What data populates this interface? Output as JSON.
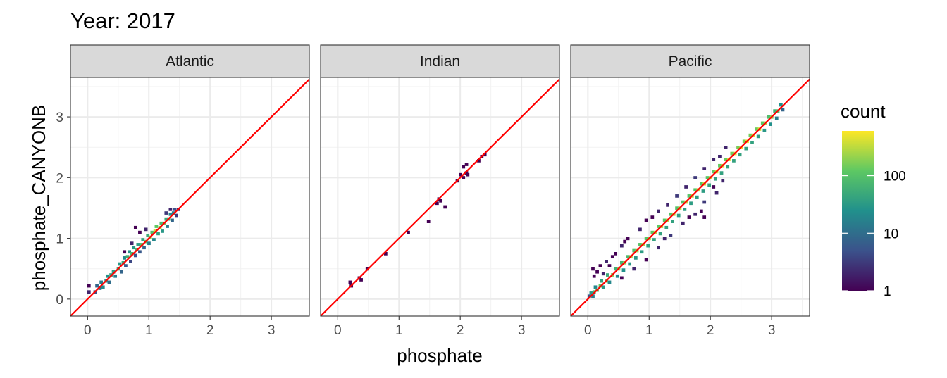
{
  "chart_data": {
    "type": "heatmap",
    "title": "Year: 2017",
    "xlabel": "phosphate",
    "ylabel": "phosphate_CANYONB",
    "xlim": [
      -0.28,
      3.62
    ],
    "ylim": [
      -0.28,
      3.65
    ],
    "x_ticks": [
      "0",
      "1",
      "2",
      "3"
    ],
    "y_ticks": [
      "0",
      "1",
      "2",
      "3"
    ],
    "reference_line": {
      "slope": 1,
      "intercept": 0,
      "color": "#ff0000"
    },
    "grid": true,
    "legend": {
      "title": "count",
      "placement": "right",
      "scale": "log",
      "range": [
        1,
        600
      ],
      "breaks": [
        "1",
        "10",
        "100"
      ],
      "colors": [
        "#440154",
        "#3b528b",
        "#21908c",
        "#5dc863",
        "#fde725"
      ]
    },
    "panels": [
      {
        "name": "Atlantic",
        "cells": [
          [
            0.02,
            0.22,
            1
          ],
          [
            0.02,
            0.12,
            2
          ],
          [
            0.12,
            0.12,
            5
          ],
          [
            0.15,
            0.22,
            8
          ],
          [
            0.2,
            0.18,
            12
          ],
          [
            0.22,
            0.28,
            15
          ],
          [
            0.25,
            0.2,
            20
          ],
          [
            0.3,
            0.3,
            30
          ],
          [
            0.32,
            0.38,
            25
          ],
          [
            0.35,
            0.28,
            10
          ],
          [
            0.38,
            0.4,
            40
          ],
          [
            0.42,
            0.45,
            35
          ],
          [
            0.45,
            0.38,
            15
          ],
          [
            0.5,
            0.5,
            50
          ],
          [
            0.52,
            0.58,
            30
          ],
          [
            0.55,
            0.45,
            8
          ],
          [
            0.58,
            0.6,
            45
          ],
          [
            0.6,
            0.68,
            20
          ],
          [
            0.62,
            0.55,
            6
          ],
          [
            0.65,
            0.7,
            60
          ],
          [
            0.68,
            0.78,
            25
          ],
          [
            0.7,
            0.62,
            4
          ],
          [
            0.72,
            0.75,
            70
          ],
          [
            0.75,
            0.85,
            30
          ],
          [
            0.78,
            0.72,
            5
          ],
          [
            0.8,
            0.82,
            80
          ],
          [
            0.82,
            0.9,
            35
          ],
          [
            0.85,
            0.78,
            6
          ],
          [
            0.88,
            0.9,
            100
          ],
          [
            0.9,
            0.98,
            40
          ],
          [
            0.92,
            0.85,
            8
          ],
          [
            0.95,
            0.95,
            120
          ],
          [
            0.98,
            1.05,
            50
          ],
          [
            1.0,
            0.92,
            15
          ],
          [
            1.02,
            1.02,
            200
          ],
          [
            1.05,
            1.1,
            90
          ],
          [
            1.08,
            0.98,
            20
          ],
          [
            1.1,
            1.12,
            350
          ],
          [
            1.12,
            1.2,
            120
          ],
          [
            1.15,
            1.08,
            40
          ],
          [
            1.18,
            1.18,
            250
          ],
          [
            1.2,
            1.25,
            80
          ],
          [
            1.22,
            1.12,
            30
          ],
          [
            1.25,
            1.25,
            150
          ],
          [
            1.28,
            1.32,
            50
          ],
          [
            1.3,
            1.2,
            15
          ],
          [
            1.32,
            1.32,
            60
          ],
          [
            1.35,
            1.4,
            20
          ],
          [
            1.38,
            1.3,
            8
          ],
          [
            1.4,
            1.42,
            15
          ],
          [
            1.42,
            1.48,
            5
          ],
          [
            1.45,
            1.38,
            3
          ],
          [
            1.48,
            1.48,
            2
          ],
          [
            1.28,
            1.42,
            3
          ],
          [
            1.35,
            1.48,
            2
          ],
          [
            0.78,
            1.18,
            1
          ],
          [
            0.85,
            1.1,
            1
          ],
          [
            0.72,
            0.92,
            2
          ],
          [
            0.6,
            0.78,
            1
          ],
          [
            0.95,
            1.15,
            2
          ]
        ]
      },
      {
        "name": "Indian",
        "cells": [
          [
            0.2,
            0.28,
            1
          ],
          [
            0.22,
            0.22,
            1
          ],
          [
            0.35,
            0.35,
            1
          ],
          [
            0.38,
            0.32,
            1
          ],
          [
            0.48,
            0.5,
            1
          ],
          [
            0.78,
            0.75,
            1
          ],
          [
            1.15,
            1.1,
            1
          ],
          [
            1.48,
            1.28,
            1
          ],
          [
            1.62,
            1.58,
            1
          ],
          [
            1.65,
            1.65,
            1
          ],
          [
            1.75,
            1.52,
            1
          ],
          [
            1.68,
            1.62,
            1
          ],
          [
            1.95,
            1.95,
            1
          ],
          [
            2.0,
            2.05,
            1
          ],
          [
            2.05,
            2.0,
            1
          ],
          [
            2.1,
            2.08,
            1
          ],
          [
            2.05,
            2.18,
            1
          ],
          [
            2.1,
            2.22,
            1
          ],
          [
            2.12,
            2.05,
            1
          ],
          [
            2.35,
            2.35,
            1
          ],
          [
            2.4,
            2.38,
            1
          ],
          [
            2.3,
            2.28,
            1
          ]
        ]
      },
      {
        "name": "Pacific",
        "cells": [
          [
            0.02,
            0.05,
            5
          ],
          [
            0.05,
            0.1,
            30
          ],
          [
            0.08,
            0.05,
            15
          ],
          [
            0.1,
            0.12,
            80
          ],
          [
            0.12,
            0.2,
            20
          ],
          [
            0.15,
            0.15,
            100
          ],
          [
            0.2,
            0.22,
            120
          ],
          [
            0.22,
            0.3,
            40
          ],
          [
            0.25,
            0.2,
            30
          ],
          [
            0.3,
            0.3,
            150
          ],
          [
            0.32,
            0.4,
            50
          ],
          [
            0.35,
            0.28,
            20
          ],
          [
            0.4,
            0.4,
            180
          ],
          [
            0.45,
            0.5,
            60
          ],
          [
            0.48,
            0.38,
            20
          ],
          [
            0.5,
            0.5,
            200
          ],
          [
            0.55,
            0.6,
            70
          ],
          [
            0.58,
            0.48,
            25
          ],
          [
            0.6,
            0.6,
            220
          ],
          [
            0.65,
            0.7,
            80
          ],
          [
            0.68,
            0.58,
            30
          ],
          [
            0.7,
            0.7,
            240
          ],
          [
            0.75,
            0.8,
            90
          ],
          [
            0.78,
            0.68,
            30
          ],
          [
            0.8,
            0.8,
            250
          ],
          [
            0.85,
            0.9,
            100
          ],
          [
            0.88,
            0.78,
            35
          ],
          [
            0.9,
            0.9,
            260
          ],
          [
            0.95,
            1.0,
            110
          ],
          [
            0.98,
            0.88,
            40
          ],
          [
            1.0,
            1.0,
            280
          ],
          [
            1.05,
            1.1,
            120
          ],
          [
            1.08,
            0.98,
            40
          ],
          [
            1.1,
            1.1,
            300
          ],
          [
            1.15,
            1.2,
            120
          ],
          [
            1.18,
            1.08,
            40
          ],
          [
            1.2,
            1.2,
            300
          ],
          [
            1.25,
            1.3,
            110
          ],
          [
            1.28,
            1.18,
            40
          ],
          [
            1.3,
            1.3,
            300
          ],
          [
            1.35,
            1.4,
            100
          ],
          [
            1.38,
            1.28,
            40
          ],
          [
            1.4,
            1.4,
            320
          ],
          [
            1.45,
            1.5,
            100
          ],
          [
            1.48,
            1.38,
            35
          ],
          [
            1.5,
            1.5,
            330
          ],
          [
            1.55,
            1.6,
            100
          ],
          [
            1.58,
            1.48,
            35
          ],
          [
            1.6,
            1.6,
            340
          ],
          [
            1.65,
            1.7,
            100
          ],
          [
            1.68,
            1.58,
            35
          ],
          [
            1.7,
            1.7,
            350
          ],
          [
            1.75,
            1.8,
            100
          ],
          [
            1.78,
            1.68,
            35
          ],
          [
            1.8,
            1.8,
            360
          ],
          [
            1.85,
            1.9,
            100
          ],
          [
            1.88,
            1.78,
            35
          ],
          [
            1.9,
            1.9,
            370
          ],
          [
            1.95,
            2.0,
            110
          ],
          [
            1.98,
            1.88,
            40
          ],
          [
            2.0,
            2.0,
            380
          ],
          [
            2.05,
            2.1,
            120
          ],
          [
            2.08,
            1.98,
            40
          ],
          [
            2.1,
            2.1,
            400
          ],
          [
            2.15,
            2.2,
            130
          ],
          [
            2.18,
            2.08,
            40
          ],
          [
            2.2,
            2.2,
            420
          ],
          [
            2.25,
            2.3,
            140
          ],
          [
            2.28,
            2.18,
            40
          ],
          [
            2.3,
            2.3,
            450
          ],
          [
            2.35,
            2.4,
            150
          ],
          [
            2.38,
            2.28,
            40
          ],
          [
            2.4,
            2.4,
            480
          ],
          [
            2.45,
            2.5,
            160
          ],
          [
            2.48,
            2.38,
            40
          ],
          [
            2.5,
            2.5,
            500
          ],
          [
            2.55,
            2.6,
            160
          ],
          [
            2.58,
            2.48,
            40
          ],
          [
            2.6,
            2.6,
            480
          ],
          [
            2.65,
            2.7,
            150
          ],
          [
            2.68,
            2.58,
            40
          ],
          [
            2.7,
            2.7,
            450
          ],
          [
            2.75,
            2.8,
            140
          ],
          [
            2.78,
            2.68,
            35
          ],
          [
            2.8,
            2.8,
            400
          ],
          [
            2.85,
            2.9,
            120
          ],
          [
            2.88,
            2.78,
            30
          ],
          [
            2.9,
            2.9,
            300
          ],
          [
            2.95,
            3.0,
            90
          ],
          [
            2.98,
            2.88,
            25
          ],
          [
            3.0,
            3.0,
            200
          ],
          [
            3.05,
            3.1,
            60
          ],
          [
            3.08,
            2.98,
            15
          ],
          [
            3.1,
            3.1,
            100
          ],
          [
            3.15,
            3.2,
            25
          ],
          [
            3.18,
            3.12,
            8
          ],
          [
            0.15,
            0.45,
            1
          ],
          [
            0.2,
            0.55,
            1
          ],
          [
            0.3,
            0.62,
            2
          ],
          [
            0.4,
            0.7,
            1
          ],
          [
            0.55,
            0.88,
            2
          ],
          [
            0.65,
            1.0,
            1
          ],
          [
            0.85,
            1.15,
            2
          ],
          [
            0.95,
            1.3,
            1
          ],
          [
            1.15,
            1.45,
            2
          ],
          [
            1.3,
            1.55,
            2
          ],
          [
            1.45,
            1.7,
            3
          ],
          [
            1.6,
            1.85,
            2
          ],
          [
            1.75,
            2.0,
            3
          ],
          [
            1.9,
            2.15,
            2
          ],
          [
            2.05,
            2.3,
            2
          ],
          [
            2.25,
            2.5,
            2
          ],
          [
            0.55,
            0.35,
            1
          ],
          [
            0.75,
            0.5,
            2
          ],
          [
            0.95,
            0.65,
            1
          ],
          [
            1.15,
            0.85,
            2
          ],
          [
            1.35,
            1.05,
            3
          ],
          [
            1.55,
            1.25,
            2
          ],
          [
            1.75,
            1.4,
            2
          ],
          [
            1.9,
            1.6,
            3
          ],
          [
            2.1,
            1.75,
            2
          ],
          [
            2.2,
            1.95,
            2
          ],
          [
            1.85,
            1.45,
            1
          ],
          [
            1.9,
            1.35,
            1
          ],
          [
            2.05,
            1.85,
            1
          ],
          [
            0.1,
            0.38,
            1
          ],
          [
            0.35,
            0.55,
            1
          ],
          [
            0.6,
            0.95,
            1
          ],
          [
            0.45,
            0.75,
            1
          ],
          [
            0.25,
            0.42,
            2
          ],
          [
            0.08,
            0.5,
            1
          ],
          [
            1.05,
            1.35,
            1
          ],
          [
            1.25,
            1.0,
            2
          ],
          [
            1.65,
            1.35,
            1
          ],
          [
            2.15,
            2.35,
            2
          ]
        ]
      }
    ]
  }
}
